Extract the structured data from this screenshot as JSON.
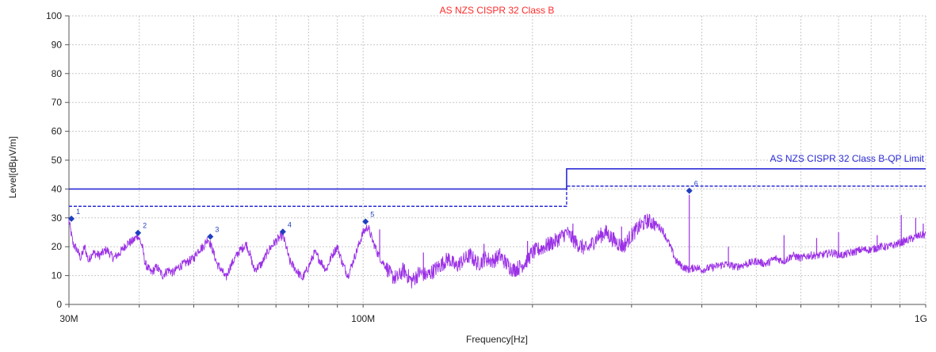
{
  "chart_data": {
    "type": "line",
    "title": "AS NZS CISPR 32 Class B",
    "xlabel": "Frequency[Hz]",
    "ylabel": "Level[dBμV/m]",
    "x_scale": "log",
    "xlim": [
      30000000,
      1000000000
    ],
    "ylim": [
      0,
      100
    ],
    "x_ticks": [
      {
        "value": 30000000,
        "label": "30M"
      },
      {
        "value": 100000000,
        "label": "100M"
      },
      {
        "value": 1000000000,
        "label": "1G"
      }
    ],
    "y_ticks": [
      0,
      10,
      20,
      30,
      40,
      50,
      60,
      70,
      80,
      90,
      100
    ],
    "grid": true,
    "colors": {
      "title": "#ff2a2a",
      "limit": "#2b2bd6",
      "trace": "#9b30e6",
      "marker": "#1f3fbf",
      "grid": "#c8c8c8",
      "axis": "#555555"
    },
    "annotations": [
      {
        "text": "AS NZS CISPR 32 Class B-QP Limit",
        "x": 1000000000,
        "y": 47
      }
    ],
    "limit_line": {
      "style": "solid",
      "points": [
        [
          30000000,
          40
        ],
        [
          230000000,
          40
        ],
        [
          230000000,
          47
        ],
        [
          1000000000,
          47
        ]
      ]
    },
    "margin_line": {
      "style": "dashed",
      "points": [
        [
          30000000,
          34
        ],
        [
          230000000,
          34
        ],
        [
          230000000,
          41
        ],
        [
          1000000000,
          41
        ]
      ]
    },
    "markers": [
      {
        "label": "1",
        "x": 30300000,
        "y": 29.7
      },
      {
        "label": "2",
        "x": 39800000,
        "y": 24.8
      },
      {
        "label": "3",
        "x": 53500000,
        "y": 23.5
      },
      {
        "label": "4",
        "x": 72000000,
        "y": 25.2
      },
      {
        "label": "5",
        "x": 101000000,
        "y": 28.7
      },
      {
        "label": "6",
        "x": 380000000,
        "y": 39.4
      }
    ],
    "series": [
      {
        "values": [
          [
            30000000,
            29
          ],
          [
            30500000,
            21
          ],
          [
            31000000,
            19
          ],
          [
            31500000,
            16
          ],
          [
            32000000,
            20
          ],
          [
            32500000,
            15
          ],
          [
            33000000,
            18
          ],
          [
            34000000,
            17
          ],
          [
            35000000,
            19
          ],
          [
            36000000,
            16
          ],
          [
            37000000,
            18
          ],
          [
            38000000,
            21
          ],
          [
            39000000,
            22
          ],
          [
            39800000,
            24
          ],
          [
            40500000,
            20
          ],
          [
            41000000,
            14
          ],
          [
            42000000,
            11
          ],
          [
            43000000,
            13
          ],
          [
            44000000,
            10
          ],
          [
            45000000,
            12
          ],
          [
            46000000,
            11
          ],
          [
            47000000,
            13
          ],
          [
            48000000,
            14
          ],
          [
            49000000,
            15
          ],
          [
            50000000,
            16
          ],
          [
            51000000,
            19
          ],
          [
            52000000,
            20
          ],
          [
            53000000,
            23
          ],
          [
            54000000,
            19
          ],
          [
            55000000,
            14
          ],
          [
            56000000,
            12
          ],
          [
            57000000,
            9
          ],
          [
            58000000,
            13
          ],
          [
            60000000,
            18
          ],
          [
            62000000,
            21
          ],
          [
            63000000,
            17
          ],
          [
            64000000,
            12
          ],
          [
            66000000,
            14
          ],
          [
            68000000,
            19
          ],
          [
            70000000,
            22
          ],
          [
            72000000,
            24
          ],
          [
            73000000,
            20
          ],
          [
            74000000,
            15
          ],
          [
            76000000,
            12
          ],
          [
            78000000,
            9
          ],
          [
            80000000,
            13
          ],
          [
            82000000,
            18
          ],
          [
            84000000,
            15
          ],
          [
            86000000,
            12
          ],
          [
            88000000,
            17
          ],
          [
            90000000,
            20
          ],
          [
            92000000,
            14
          ],
          [
            94000000,
            10
          ],
          [
            96000000,
            15
          ],
          [
            98000000,
            20
          ],
          [
            100000000,
            25
          ],
          [
            102000000,
            27
          ],
          [
            104000000,
            22
          ],
          [
            106000000,
            18
          ],
          [
            108000000,
            15
          ],
          [
            110000000,
            13
          ],
          [
            112000000,
            10
          ],
          [
            115000000,
            9
          ],
          [
            118000000,
            12
          ],
          [
            122000000,
            8
          ],
          [
            126000000,
            11
          ],
          [
            130000000,
            10
          ],
          [
            134000000,
            12
          ],
          [
            138000000,
            14
          ],
          [
            142000000,
            16
          ],
          [
            146000000,
            13
          ],
          [
            150000000,
            15
          ],
          [
            155000000,
            17
          ],
          [
            160000000,
            14
          ],
          [
            165000000,
            16
          ],
          [
            170000000,
            15
          ],
          [
            175000000,
            17
          ],
          [
            180000000,
            14
          ],
          [
            185000000,
            12
          ],
          [
            190000000,
            13
          ],
          [
            195000000,
            15
          ],
          [
            200000000,
            18
          ],
          [
            210000000,
            20
          ],
          [
            220000000,
            22
          ],
          [
            230000000,
            25
          ],
          [
            240000000,
            21
          ],
          [
            250000000,
            19
          ],
          [
            260000000,
            23
          ],
          [
            270000000,
            25
          ],
          [
            280000000,
            22
          ],
          [
            290000000,
            20
          ],
          [
            300000000,
            24
          ],
          [
            310000000,
            27
          ],
          [
            320000000,
            29
          ],
          [
            330000000,
            28
          ],
          [
            340000000,
            26
          ],
          [
            350000000,
            21
          ],
          [
            360000000,
            15
          ],
          [
            370000000,
            13
          ],
          [
            380000000,
            12
          ],
          [
            390000000,
            13
          ],
          [
            400000000,
            12
          ],
          [
            420000000,
            13
          ],
          [
            440000000,
            14
          ],
          [
            460000000,
            13
          ],
          [
            480000000,
            14
          ],
          [
            500000000,
            15
          ],
          [
            520000000,
            14
          ],
          [
            540000000,
            16
          ],
          [
            560000000,
            15
          ],
          [
            580000000,
            17
          ],
          [
            600000000,
            16
          ],
          [
            620000000,
            17
          ],
          [
            650000000,
            17
          ],
          [
            680000000,
            18
          ],
          [
            710000000,
            17
          ],
          [
            740000000,
            18
          ],
          [
            770000000,
            19
          ],
          [
            800000000,
            19
          ],
          [
            830000000,
            20
          ],
          [
            860000000,
            20
          ],
          [
            890000000,
            21
          ],
          [
            920000000,
            22
          ],
          [
            950000000,
            23
          ],
          [
            980000000,
            24
          ],
          [
            1000000000,
            24
          ]
        ]
      }
    ],
    "spikes": [
      [
        107000000,
        26
      ],
      [
        128000000,
        18
      ],
      [
        164000000,
        21
      ],
      [
        196000000,
        22
      ],
      [
        236000000,
        28
      ],
      [
        288000000,
        27
      ],
      [
        380000000,
        38
      ],
      [
        446000000,
        20
      ],
      [
        560000000,
        24
      ],
      [
        640000000,
        23
      ],
      [
        700000000,
        25
      ],
      [
        820000000,
        24
      ],
      [
        905000000,
        31
      ],
      [
        960000000,
        30
      ],
      [
        990000000,
        28
      ]
    ]
  }
}
